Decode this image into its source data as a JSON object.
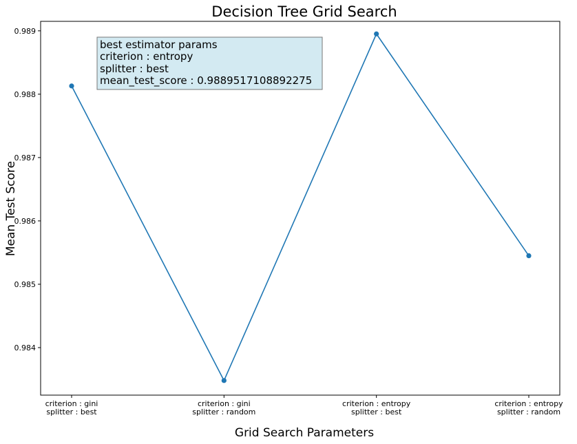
{
  "chart_data": {
    "type": "line",
    "title": "Decision Tree Grid Search",
    "xlabel": "Grid Search Parameters",
    "ylabel": "Mean Test Score",
    "categories": [
      [
        "criterion : gini",
        "splitter : best"
      ],
      [
        "criterion : gini",
        "splitter : random"
      ],
      [
        "criterion : entropy",
        "splitter : best"
      ],
      [
        "criterion : entropy",
        "splitter : random"
      ]
    ],
    "series": [
      {
        "values": [
          0.98813,
          0.98348,
          0.98895171,
          0.98545
        ],
        "color": "#1f77b4",
        "marker": "circle"
      }
    ],
    "yticks": [
      "0.984",
      "0.985",
      "0.986",
      "0.987",
      "0.988",
      "0.989"
    ],
    "ytick_values": [
      0.984,
      0.985,
      0.986,
      0.987,
      0.988,
      0.989
    ],
    "ylim": [
      0.98325,
      0.98915
    ],
    "grid": false,
    "annotation": {
      "lines": [
        "best estimator params",
        "criterion : entropy",
        "splitter : best",
        "mean_test_score : 0.9889517108892275"
      ],
      "background": "#d3eaf2",
      "border": "#777777"
    }
  }
}
